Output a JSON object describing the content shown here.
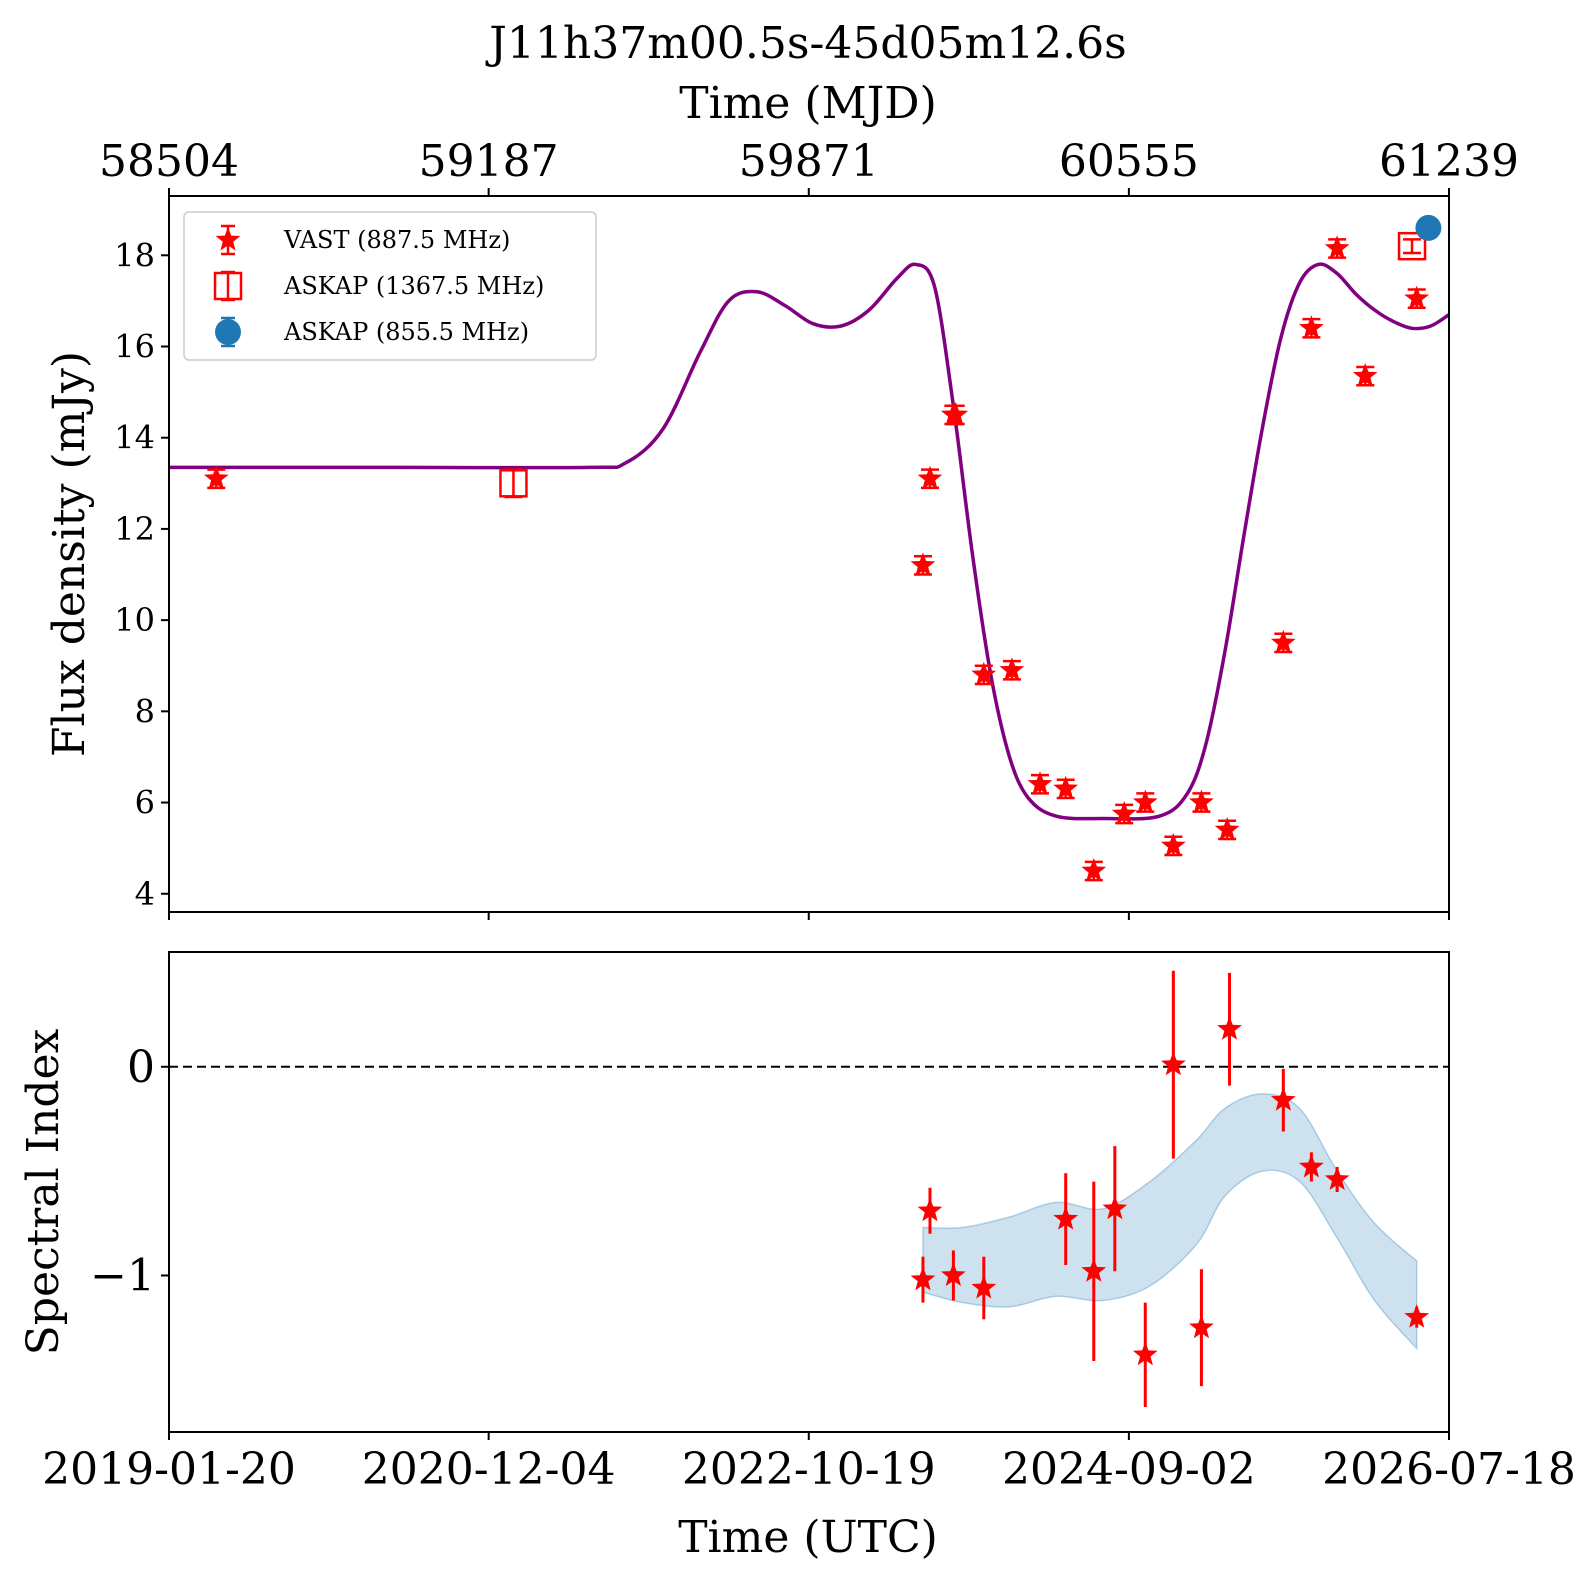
{
  "figure_title": "J11h37m00.5s-45d05m12.6s",
  "colors": {
    "vast": "#ff0000",
    "askap_1367": "#ff0000",
    "askap_855": "#1f77b4",
    "fit_curve": "#800080",
    "band": "#1f77b4"
  },
  "chart_data": [
    {
      "type": "scatter",
      "panel": "flux",
      "title": "J11h37m00.5s-45d05m12.6s",
      "xlabel_top": "Time (MJD)",
      "ylabel": "Flux density (mJy)",
      "x_unit": "MJD",
      "xlim": [
        58504,
        61239
      ],
      "ylim": [
        3.6,
        19.3
      ],
      "yticks": [
        4,
        6,
        8,
        10,
        12,
        14,
        16,
        18
      ],
      "xticks_top": [
        58504,
        59187,
        59871,
        60555,
        61239
      ],
      "legend_position": "upper-left",
      "legend": [
        "VAST (887.5 MHz)",
        "ASKAP (1367.5 MHz)",
        "ASKAP (855.5 MHz)"
      ],
      "series": [
        {
          "name": "VAST (887.5 MHz)",
          "marker": "star",
          "x": [
            58605,
            60115,
            60130,
            60185,
            60180,
            60245,
            60305,
            60365,
            60420,
            60480,
            60545,
            60590,
            60650,
            60710,
            60765,
            60885,
            60945,
            61000,
            61060,
            61170
          ],
          "y": [
            13.1,
            11.2,
            13.1,
            14.5,
            14.5,
            8.8,
            8.9,
            6.4,
            6.3,
            4.5,
            5.75,
            6.0,
            5.05,
            6.0,
            5.4,
            9.5,
            16.4,
            18.15,
            15.35,
            17.05
          ],
          "yerr": [
            0.2,
            0.2,
            0.2,
            0.2,
            0.2,
            0.2,
            0.2,
            0.2,
            0.2,
            0.2,
            0.2,
            0.2,
            0.2,
            0.2,
            0.2,
            0.2,
            0.2,
            0.2,
            0.2,
            0.2
          ]
        },
        {
          "name": "ASKAP (1367.5 MHz)",
          "marker": "open-square",
          "x": [
            59240,
            61160
          ],
          "y": [
            13.0,
            18.2
          ],
          "yerr": [
            0.3,
            0.15
          ]
        },
        {
          "name": "ASKAP (855.5 MHz)",
          "marker": "filled-circle",
          "x": [
            61195
          ],
          "y": [
            18.6
          ],
          "yerr": [
            0.1
          ]
        },
        {
          "name": "",
          "type": "line",
          "x": [
            58504,
            59000,
            59400,
            59480,
            59560,
            59640,
            59700,
            59760,
            59820,
            59880,
            59940,
            60000,
            60060,
            60100,
            60140,
            60180,
            60220,
            60260,
            60300,
            60340,
            60400,
            60500,
            60620,
            60680,
            60720,
            60760,
            60800,
            60840,
            60880,
            60920,
            60960,
            61000,
            61040,
            61080,
            61120,
            61160,
            61200,
            61239
          ],
          "y": [
            13.35,
            13.35,
            13.35,
            13.45,
            14.2,
            15.9,
            17.0,
            17.2,
            16.9,
            16.5,
            16.45,
            16.8,
            17.5,
            17.8,
            17.3,
            14.7,
            11.5,
            8.8,
            7.0,
            6.1,
            5.7,
            5.65,
            5.7,
            6.2,
            7.3,
            9.3,
            11.8,
            14.2,
            16.2,
            17.4,
            17.8,
            17.6,
            17.15,
            16.8,
            16.55,
            16.4,
            16.45,
            16.7
          ]
        }
      ]
    },
    {
      "type": "scatter",
      "panel": "spectral_index",
      "xlabel": "Time (UTC)",
      "ylabel": "Spectral Index",
      "x_unit": "MJD",
      "xlim": [
        58504,
        61239
      ],
      "ylim": [
        -1.75,
        0.55
      ],
      "yticks": [
        0,
        -1
      ],
      "ytick_labels": [
        "0",
        "−1"
      ],
      "xticks": [
        58504,
        59187,
        59871,
        60555,
        61239
      ],
      "xtick_labels": [
        "2019-01-20",
        "2020-12-04",
        "2022-10-19",
        "2024-09-02",
        "2026-07-18"
      ],
      "reference_line": 0,
      "series": [
        {
          "name": "",
          "marker": "star",
          "x": [
            60115,
            60130,
            60180,
            60245,
            60420,
            60480,
            60525,
            60590,
            60650,
            60710,
            60770,
            60885,
            60945,
            61000,
            61170
          ],
          "y": [
            -1.02,
            -0.69,
            -1.0,
            -1.06,
            -0.73,
            -0.98,
            -0.68,
            -1.38,
            0.01,
            -1.25,
            0.18,
            -0.16,
            -0.48,
            -0.54,
            -1.2
          ],
          "yerr": [
            0.11,
            0.11,
            0.12,
            0.15,
            0.22,
            0.43,
            0.3,
            0.25,
            0.45,
            0.28,
            0.27,
            0.15,
            0.07,
            0.06,
            0.05
          ]
        },
        {
          "name": "",
          "type": "band",
          "x": [
            60115,
            60200,
            60300,
            60400,
            60500,
            60600,
            60700,
            60760,
            60840,
            60920,
            61000,
            61080,
            61170
          ],
          "y_low": [
            -1.08,
            -1.13,
            -1.15,
            -1.1,
            -1.12,
            -1.05,
            -0.85,
            -0.62,
            -0.5,
            -0.55,
            -0.82,
            -1.12,
            -1.35
          ],
          "y_high": [
            -0.77,
            -0.77,
            -0.72,
            -0.65,
            -0.68,
            -0.55,
            -0.35,
            -0.2,
            -0.13,
            -0.2,
            -0.5,
            -0.75,
            -0.93
          ]
        }
      ]
    }
  ]
}
